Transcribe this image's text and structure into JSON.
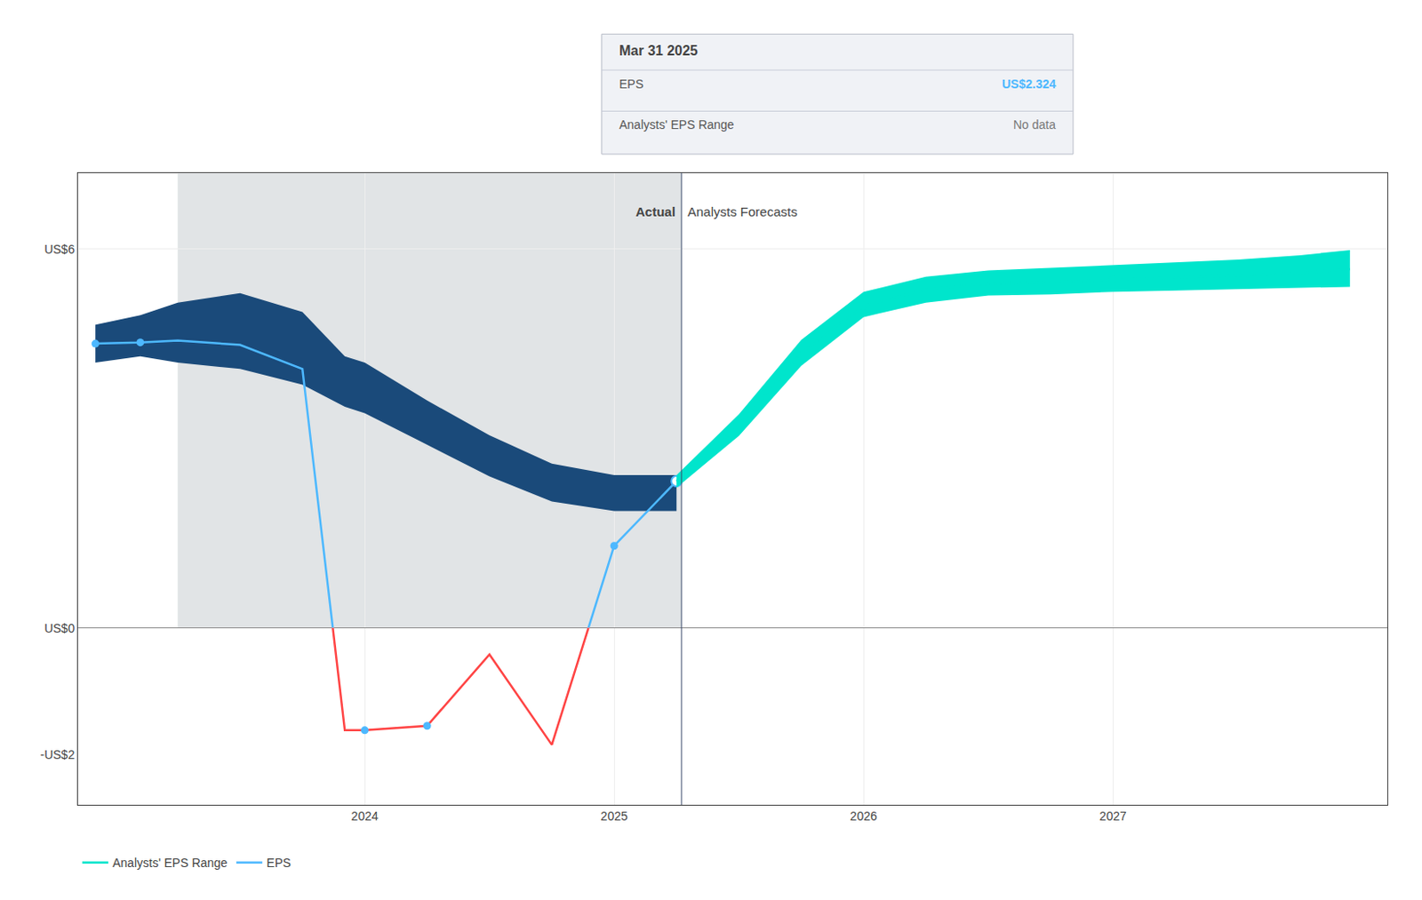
{
  "chart_data": {
    "type": "line",
    "xlim": [
      2022.85,
      2028.1
    ],
    "ylim": [
      -2.8,
      7.2
    ],
    "xticks": [
      2024,
      2025,
      2026,
      2027
    ],
    "yticks": [
      {
        "value": -2,
        "label": "-US$2"
      },
      {
        "value": 0,
        "label": "US$0"
      },
      {
        "value": 6,
        "label": "US$6"
      }
    ],
    "grid": true,
    "legend": "bottom left",
    "series": [
      {
        "name": "EPS",
        "color": {
          "positive": "#4db8ff",
          "negative": "#ff4444"
        },
        "x": [
          2022.92,
          2023.1,
          2023.25,
          2023.5,
          2023.75,
          2023.92,
          2024.0,
          2024.25,
          2024.5,
          2024.75,
          2025.0,
          2025.25
        ],
        "values": [
          4.5,
          4.52,
          4.55,
          4.48,
          4.1,
          -1.62,
          -1.62,
          -1.55,
          -0.42,
          -1.85,
          1.3,
          2.324
        ],
        "band_lower": [
          4.2,
          4.3,
          4.2,
          4.1,
          3.85,
          3.5,
          3.4,
          2.9,
          2.4,
          2.0,
          1.85,
          1.85
        ],
        "band_upper": [
          4.8,
          4.95,
          5.15,
          5.3,
          5.0,
          4.3,
          4.2,
          3.6,
          3.05,
          2.6,
          2.42,
          2.42
        ],
        "band_color": "#1a4a7a",
        "marked_points": [
          [
            2022.92,
            4.5
          ],
          [
            2023.1,
            4.52
          ],
          [
            2024.0,
            -1.62
          ],
          [
            2024.25,
            -1.55
          ],
          [
            2025.0,
            1.3
          ]
        ],
        "open_point": [
          2025.25,
          2.324
        ]
      },
      {
        "name": "Analysts' EPS Range",
        "color": "#00e5cc",
        "x": [
          2025.25,
          2025.5,
          2025.75,
          2026.0,
          2026.25,
          2026.5,
          2026.75,
          2027.0,
          2027.25,
          2027.5,
          2027.75,
          2027.95
        ],
        "values": [
          2.324,
          3.2,
          4.35,
          5.1,
          5.35,
          5.45,
          5.48,
          5.52,
          5.55,
          5.58,
          5.62,
          5.68
        ],
        "band_lower": [
          2.22,
          3.04,
          4.15,
          4.92,
          5.15,
          5.26,
          5.28,
          5.32,
          5.34,
          5.36,
          5.38,
          5.4
        ],
        "band_upper": [
          2.42,
          3.38,
          4.56,
          5.32,
          5.56,
          5.66,
          5.7,
          5.74,
          5.79,
          5.83,
          5.9,
          5.98
        ],
        "marked_points": [
          [
            2026.0,
            5.1
          ],
          [
            2027.0,
            5.52
          ]
        ]
      }
    ],
    "shaded_span": {
      "start": 2023.25,
      "end": 2025.27,
      "color": "#0a1e32"
    },
    "divider_x": 2025.27,
    "annotations": [
      {
        "text": "Actual",
        "x": 2025.27,
        "y": 6.45,
        "align": "right"
      },
      {
        "text": "Analysts Forecasts",
        "x": 2025.27,
        "y": 6.45,
        "align": "left"
      }
    ],
    "tooltip": {
      "title": "Mar 31 2025",
      "rows": [
        {
          "label": "EPS",
          "value": "US$2.324"
        },
        {
          "label": "Analysts' EPS Range",
          "value": "No data"
        }
      ]
    }
  }
}
